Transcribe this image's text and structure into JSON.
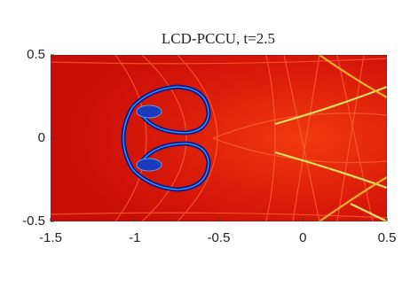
{
  "chart_data": {
    "type": "image",
    "title": "LCD-PCCU, t=2.5",
    "xlim": [
      -1.5,
      0.5
    ],
    "xticks": [
      -1.5,
      -1,
      -0.5,
      0,
      0.5
    ],
    "ylim": [
      -0.5,
      0.5
    ],
    "yticks": [
      -0.5,
      0,
      0.5
    ]
  }
}
